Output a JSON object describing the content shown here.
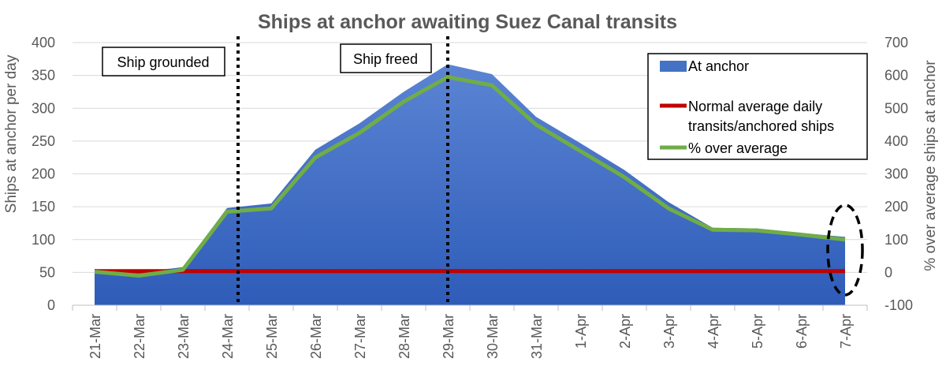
{
  "chart_data": {
    "type": "area",
    "title": "Ships at anchor awaiting Suez Canal transits",
    "ylabel": "Ships at anchor per day",
    "y2label": "% over average ships at anchor",
    "ylim": [
      0,
      400
    ],
    "y2lim": [
      -100,
      700
    ],
    "yticks": [
      "0",
      "50",
      "100",
      "150",
      "200",
      "250",
      "300",
      "350",
      "400"
    ],
    "y2ticks": [
      "-100",
      "0",
      "100",
      "200",
      "300",
      "400",
      "500",
      "600",
      "700"
    ],
    "categories": [
      "21-Mar",
      "22-Mar",
      "23-Mar",
      "24-Mar",
      "25-Mar",
      "26-Mar",
      "27-Mar",
      "28-Mar",
      "29-Mar",
      "30-Mar",
      "31-Mar",
      "1-Apr",
      "2-Apr",
      "3-Apr",
      "4-Apr",
      "5-Apr",
      "6-Apr",
      "7-Apr"
    ],
    "grid": true,
    "legend_position": "top-right",
    "series": [
      {
        "name": "At anchor",
        "kind": "area",
        "axis": "left",
        "color": "#4472c4",
        "values": [
          55,
          50,
          58,
          148,
          155,
          237,
          277,
          325,
          367,
          352,
          287,
          247,
          206,
          157,
          118,
          117,
          110,
          104
        ]
      },
      {
        "name": "Normal average daily transits/anchored ships",
        "kind": "line",
        "axis": "left",
        "color": "#c00000",
        "values": [
          52,
          52,
          52,
          52,
          52,
          52,
          52,
          52,
          52,
          52,
          52,
          52,
          52,
          52,
          52,
          52,
          52,
          52
        ]
      },
      {
        "name": "% over average",
        "kind": "line",
        "axis": "right",
        "color": "#70ad47",
        "values": [
          2,
          -10,
          8,
          185,
          195,
          350,
          425,
          520,
          595,
          570,
          450,
          370,
          290,
          195,
          130,
          128,
          115,
          100
        ]
      }
    ],
    "annotations": [
      {
        "label": "Ship grounded",
        "marker_between": [
          "24-Mar",
          "25-Mar"
        ],
        "marker_fraction": 0.25
      },
      {
        "label": "Ship freed",
        "marker_at": "29-Mar"
      }
    ],
    "highlight": {
      "at": "7-Apr",
      "style": "dashed-ellipse"
    }
  }
}
